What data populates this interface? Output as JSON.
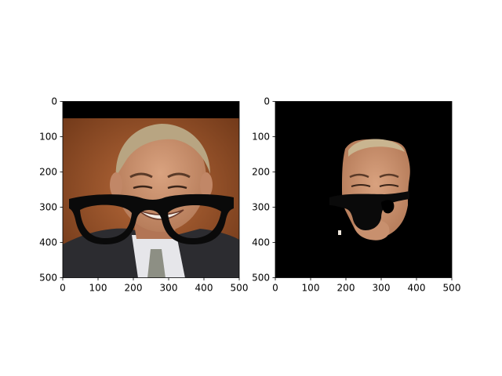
{
  "chart_data": [
    {
      "type": "image",
      "content": "portrait-photo-with-glasses-overlay",
      "xlim": [
        0,
        500
      ],
      "ylim": [
        500,
        0
      ],
      "x_ticks": [
        0,
        100,
        200,
        300,
        400,
        500
      ],
      "y_ticks": [
        0,
        100,
        200,
        300,
        400,
        500
      ],
      "x_tick_labels": [
        "0",
        "100",
        "200",
        "300",
        "400",
        "500"
      ],
      "y_tick_labels": [
        "0",
        "100",
        "200",
        "300",
        "400",
        "500"
      ],
      "title": "",
      "xlabel": "",
      "ylabel": ""
    },
    {
      "type": "image",
      "content": "segmented-face-mask-on-black",
      "xlim": [
        0,
        500
      ],
      "ylim": [
        500,
        0
      ],
      "x_ticks": [
        0,
        100,
        200,
        300,
        400,
        500
      ],
      "y_ticks": [
        0,
        100,
        200,
        300,
        400,
        500
      ],
      "x_tick_labels": [
        "0",
        "100",
        "200",
        "300",
        "400",
        "500"
      ],
      "y_tick_labels": [
        "0",
        "100",
        "200",
        "300",
        "400",
        "500"
      ],
      "title": "",
      "xlabel": "",
      "ylabel": ""
    }
  ],
  "colors": {
    "background_fill": "#000000",
    "photo_backdrop": "#8a4a22",
    "skin": "#c98f6e",
    "hair": "#b8a582",
    "suit": "#2c2c30",
    "shirt": "#e6e6ea",
    "tie": "#8d8f84",
    "glasses": "#0a0a0a",
    "spine": "#000000"
  }
}
